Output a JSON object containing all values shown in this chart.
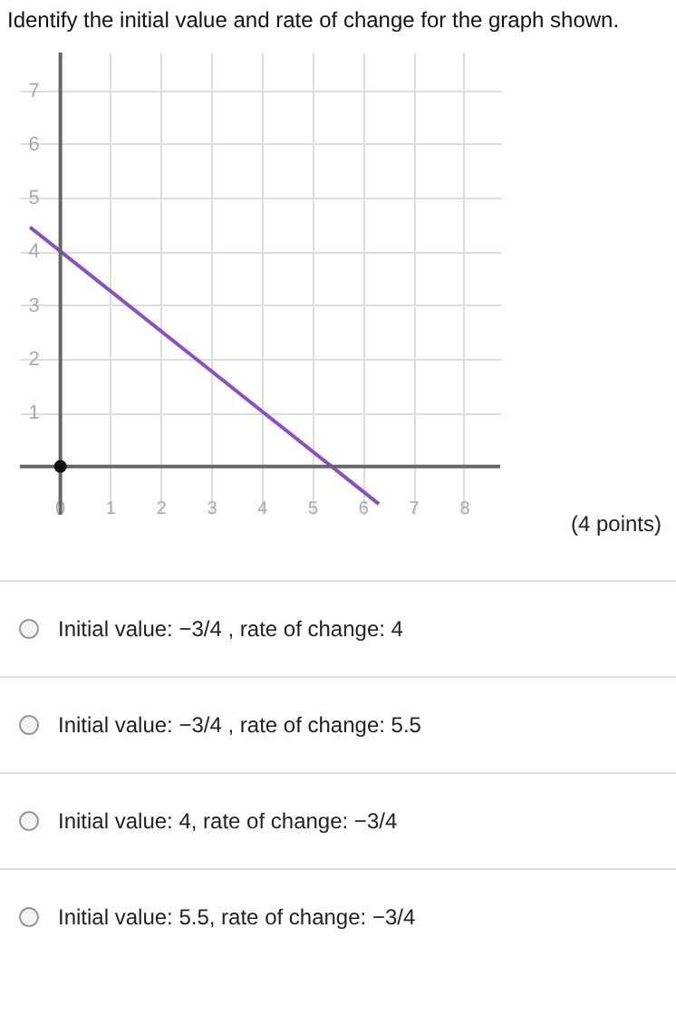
{
  "chart_data": {
    "type": "line",
    "title": "Identify the initial value and rate of change for the graph shown.",
    "annotations": [
      "(4 points)",
      "Initial value: −3/4 , rate of change: 4",
      "Initial value: −3/4 , rate of change: 5.5",
      "Initial value: 4, rate of change: −3/4",
      "Initial value: 5.5, rate of change: −3/4"
    ],
    "series": [
      {
        "color": "#8a4fc6",
        "x": [
          -0.6,
          6.3
        ],
        "values": [
          4.45,
          -0.7
        ]
      },
      {
        "type": "scatter",
        "color": "#111111",
        "x": [
          0
        ],
        "values": [
          0
        ]
      }
    ],
    "xlim": [
      -0.8,
      8.7
    ],
    "ylim": [
      -0.9,
      7.7
    ],
    "xticks": [
      0,
      1,
      2,
      3,
      4,
      5,
      6,
      7,
      8
    ],
    "yticks": [
      1,
      2,
      3,
      4,
      5,
      6,
      7
    ],
    "grid": true,
    "line_style": "solid"
  }
}
